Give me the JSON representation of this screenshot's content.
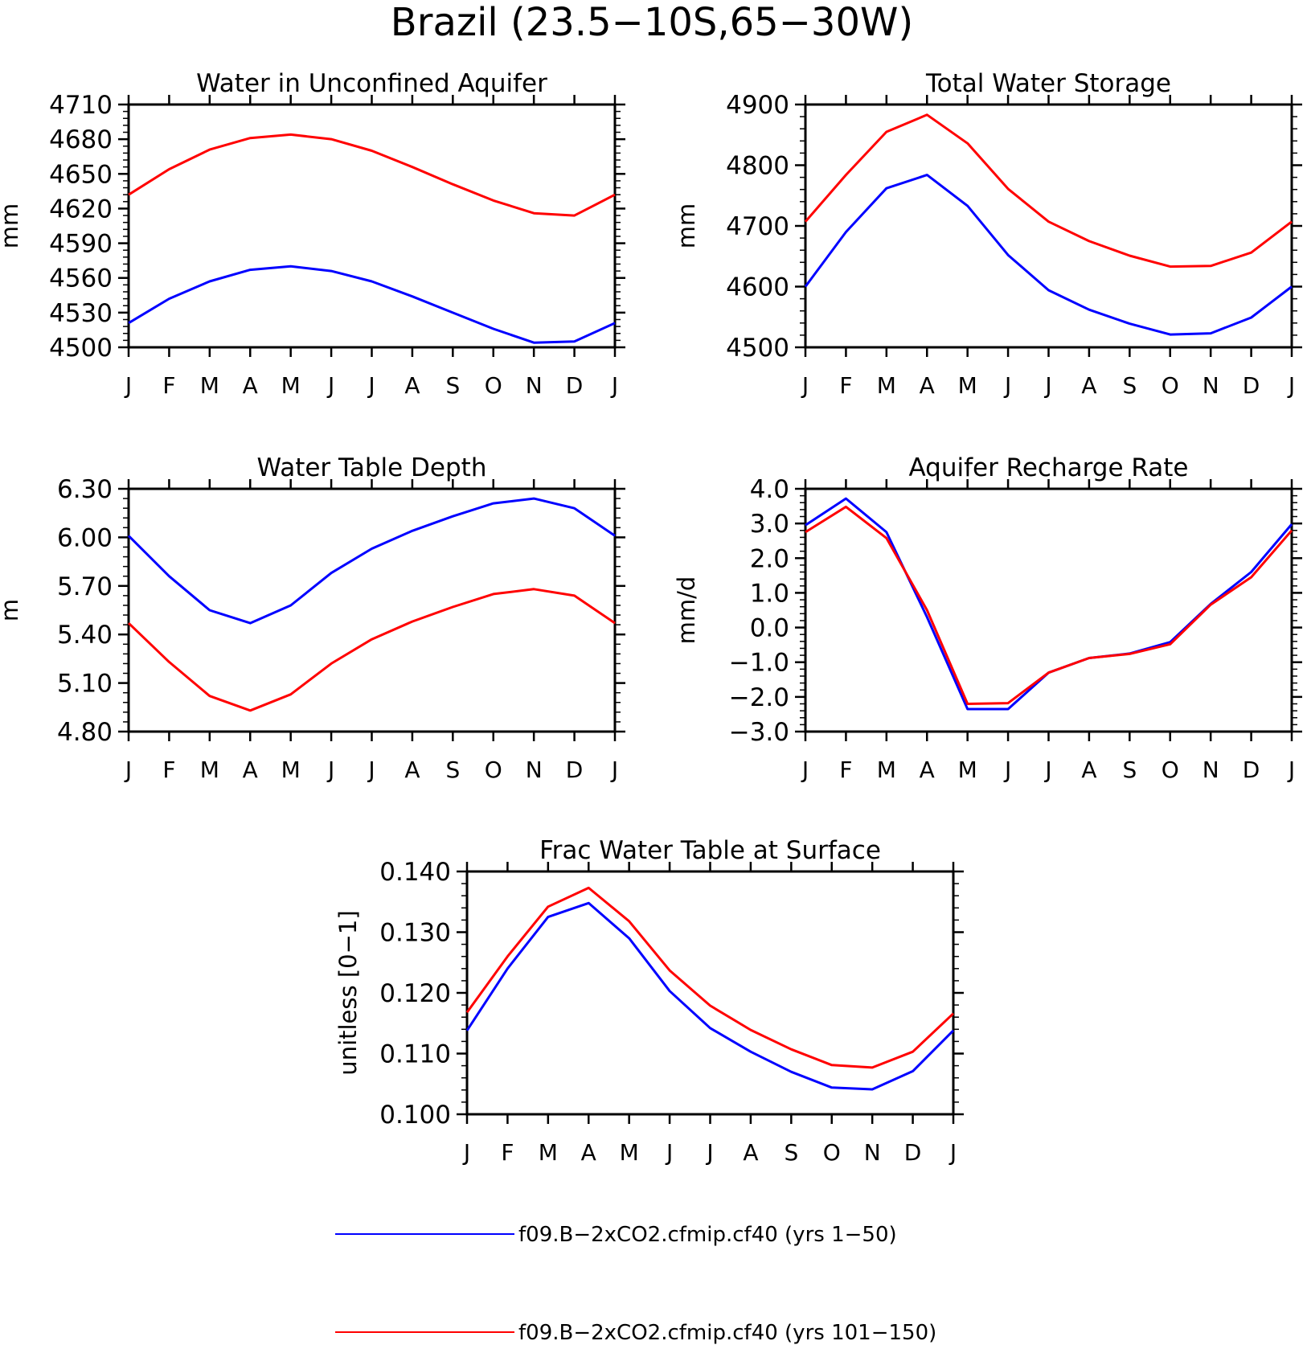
{
  "figure": {
    "title": "Brazil (23.5−10S,65−30W)"
  },
  "months": [
    "J",
    "F",
    "M",
    "A",
    "M",
    "J",
    "J",
    "A",
    "S",
    "O",
    "N",
    "D",
    "J"
  ],
  "legend": [
    {
      "label": "f09.B−2xCO2.cfmip.cf40 (yrs 1−50)",
      "color": "#0000ff"
    },
    {
      "label": "f09.B−2xCO2.cfmip.cf40 (yrs 101−150)",
      "color": "#ff0000"
    }
  ],
  "chart_data": [
    {
      "type": "line",
      "title": "Water in Unconfined Aquifer",
      "ylabel": "mm",
      "ylim": [
        4500,
        4710
      ],
      "yticks": [
        "4500",
        "4530",
        "4560",
        "4590",
        "4620",
        "4650",
        "4680",
        "4710"
      ],
      "series": [
        {
          "color": "#0000ff",
          "values": [
            4521,
            4542,
            4557,
            4567,
            4570,
            4566,
            4557,
            4544,
            4530,
            4516,
            4504,
            4505,
            4521
          ]
        },
        {
          "color": "#ff0000",
          "values": [
            4632,
            4654,
            4671,
            4681,
            4684,
            4680,
            4670,
            4656,
            4641,
            4627,
            4616,
            4614,
            4632
          ]
        }
      ]
    },
    {
      "type": "line",
      "title": "Total Water Storage",
      "ylabel": "mm",
      "ylim": [
        4500,
        4900
      ],
      "yticks": [
        "4500",
        "4600",
        "4700",
        "4800",
        "4900"
      ],
      "series": [
        {
          "color": "#0000ff",
          "values": [
            4600,
            4690,
            4762,
            4784,
            4733,
            4652,
            4594,
            4562,
            4539,
            4521,
            4523,
            4549,
            4600
          ]
        },
        {
          "color": "#ff0000",
          "values": [
            4707,
            4784,
            4855,
            4883,
            4836,
            4761,
            4707,
            4675,
            4651,
            4633,
            4634,
            4656,
            4707
          ]
        }
      ]
    },
    {
      "type": "line",
      "title": "Water Table Depth",
      "ylabel": "m",
      "ylim": [
        4.8,
        6.3
      ],
      "yticks": [
        "4.80",
        "5.10",
        "5.40",
        "5.70",
        "6.00",
        "6.30"
      ],
      "series": [
        {
          "color": "#0000ff",
          "values": [
            6.01,
            5.76,
            5.55,
            5.47,
            5.58,
            5.78,
            5.93,
            6.04,
            6.13,
            6.21,
            6.24,
            6.18,
            6.01
          ]
        },
        {
          "color": "#ff0000",
          "values": [
            5.47,
            5.23,
            5.02,
            4.93,
            5.03,
            5.22,
            5.37,
            5.48,
            5.57,
            5.65,
            5.68,
            5.64,
            5.47
          ]
        }
      ]
    },
    {
      "type": "line",
      "title": "Aquifer Recharge Rate",
      "ylabel": "mm/d",
      "ylim": [
        -3.0,
        4.0
      ],
      "yticks": [
        "−3.0",
        "−2.0",
        "−1.0",
        "0.0",
        "1.0",
        "2.0",
        "3.0",
        "4.0"
      ],
      "series": [
        {
          "color": "#0000ff",
          "values": [
            2.95,
            3.72,
            2.75,
            0.3,
            -2.35,
            -2.35,
            -1.3,
            -0.88,
            -0.75,
            -0.42,
            0.68,
            1.6,
            2.98
          ]
        },
        {
          "color": "#ff0000",
          "values": [
            2.75,
            3.48,
            2.58,
            0.5,
            -2.2,
            -2.18,
            -1.3,
            -0.88,
            -0.76,
            -0.48,
            0.66,
            1.45,
            2.8
          ]
        }
      ]
    },
    {
      "type": "line",
      "title": "Frac Water Table at Surface",
      "ylabel": "unitless [0−1]",
      "ylim": [
        0.1,
        0.14
      ],
      "yticks": [
        "0.100",
        "0.110",
        "0.120",
        "0.130",
        "0.140"
      ],
      "series": [
        {
          "color": "#0000ff",
          "values": [
            0.1138,
            0.124,
            0.1325,
            0.1348,
            0.129,
            0.1203,
            0.1142,
            0.1103,
            0.107,
            0.1044,
            0.1041,
            0.1071,
            0.1138
          ]
        },
        {
          "color": "#ff0000",
          "values": [
            0.1168,
            0.126,
            0.1342,
            0.1373,
            0.1318,
            0.1237,
            0.1179,
            0.1139,
            0.1107,
            0.1081,
            0.1077,
            0.1103,
            0.1166
          ]
        }
      ]
    }
  ]
}
